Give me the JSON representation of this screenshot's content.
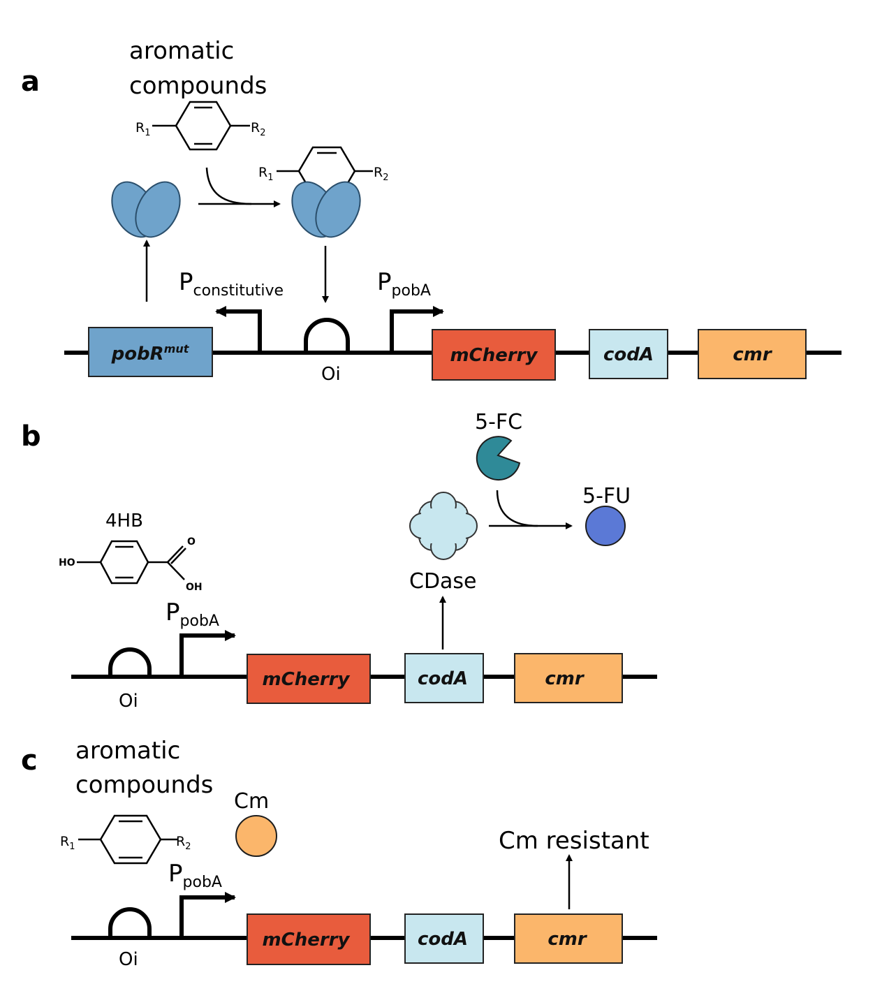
{
  "colors": {
    "pobR": "#6fa3cb",
    "mCherry": "#e85c3d",
    "codA": "#c8e7ef",
    "cmr": "#fbb66b",
    "fc": "#2f8a98",
    "fu": "#5b79d6",
    "cm": "#fbb66b",
    "cdase": "#c8e7ef"
  },
  "panel_a": {
    "panel_label": "a",
    "compounds_line1": "aromatic",
    "compounds_line2": "compounds",
    "r1": "R",
    "r1_sub": "1",
    "r2": "R",
    "r2_sub": "2",
    "p_constitutive_main": "P",
    "p_constitutive_sub": "constitutive",
    "p_poba_main": "P",
    "p_poba_sub": "pobA",
    "operator": "Oi",
    "gene_pobr": "pobR",
    "gene_pobr_sup": "mut",
    "gene_mcherry": "mCherry",
    "gene_coda": "codA",
    "gene_cmr": "cmr"
  },
  "panel_b": {
    "panel_label": "b",
    "fc_label": "5-FC",
    "fu_label": "5-FU",
    "cdase_label": "CDase",
    "hb_label": "4HB",
    "ho": "HO",
    "oh": "OH",
    "o": "O",
    "p_poba_main": "P",
    "p_poba_sub": "pobA",
    "operator": "Oi",
    "gene_mcherry": "mCherry",
    "gene_coda": "codA",
    "gene_cmr": "cmr"
  },
  "panel_c": {
    "panel_label": "c",
    "compounds_line1": "aromatic",
    "compounds_line2": "compounds",
    "r1": "R",
    "r1_sub": "1",
    "r2": "R",
    "r2_sub": "2",
    "cm_label": "Cm",
    "cm_resistant": "Cm resistant",
    "p_poba_main": "P",
    "p_poba_sub": "pobA",
    "operator": "Oi",
    "gene_mcherry": "mCherry",
    "gene_coda": "codA",
    "gene_cmr": "cmr"
  }
}
